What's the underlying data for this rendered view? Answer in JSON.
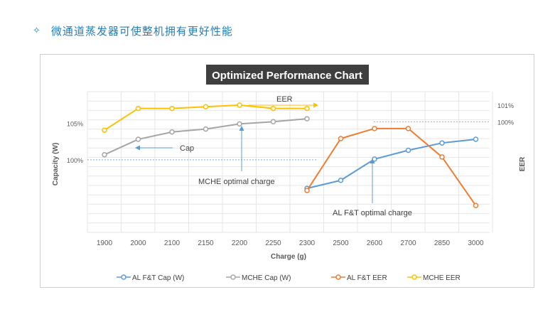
{
  "page": {
    "heading_icon": "sparkle-icon",
    "heading": "微通道蒸发器可使整机拥有更好性能"
  },
  "colors": {
    "heading": "#1f7fb8",
    "title_bg": "#3f3f3f",
    "al_cap": "#5b9bd5",
    "mche_cap": "#a5a5a5",
    "al_eer": "#ed7d31",
    "mche_eer": "#ffc000"
  },
  "chart_data": {
    "type": "line",
    "title": "Optimized Performance Chart",
    "xlabel": "Charge (g)",
    "ylabel_left": "Capacity  (W)",
    "ylabel_right": "EER",
    "categories": [
      "1900",
      "2000",
      "2100",
      "2150",
      "2200",
      "2250",
      "2300",
      "2500",
      "2600",
      "2700",
      "2850",
      "3000"
    ],
    "left_ticks": [
      {
        "label": "105%",
        "value": 105
      },
      {
        "label": "100%",
        "value": 100
      }
    ],
    "right_ticks": [
      {
        "label": "101%",
        "value": 101
      },
      {
        "label": "100%",
        "value": 100
      }
    ],
    "ylim_left": [
      90.1,
      109.3
    ],
    "ylim_right": [
      93.4,
      101.8
    ],
    "grid": true,
    "legend_position": "bottom",
    "series": [
      {
        "name": "AL F&T Cap (W)",
        "axis": "left",
        "color": "#5b9bd5",
        "values": [
          null,
          null,
          null,
          null,
          null,
          null,
          96.1,
          97.2,
          100.1,
          101.3,
          102.3,
          102.8
        ]
      },
      {
        "name": "MCHE Cap (W)",
        "axis": "left",
        "color": "#a5a5a5",
        "values": [
          100.7,
          102.8,
          103.8,
          104.2,
          104.9,
          105.2,
          105.6,
          null,
          null,
          null,
          null,
          null
        ]
      },
      {
        "name": "AL F&T EER",
        "axis": "right",
        "color": "#ed7d31",
        "values": [
          null,
          null,
          null,
          null,
          null,
          null,
          95.9,
          99.0,
          99.6,
          99.6,
          97.9,
          95.0
        ]
      },
      {
        "name": "MCHE  EER",
        "axis": "right",
        "color": "#ffc000",
        "values": [
          99.5,
          100.8,
          100.8,
          100.9,
          101.0,
          100.8,
          100.8,
          null,
          null,
          null,
          null,
          null
        ]
      }
    ],
    "reference_lines": {
      "left_100": 100,
      "right_100": 100
    },
    "annotations": {
      "eer_label": "EER",
      "cap_label": "Cap",
      "mche_optimal": "MCHE optimal charge",
      "al_optimal": "AL F&T optimal charge"
    }
  }
}
